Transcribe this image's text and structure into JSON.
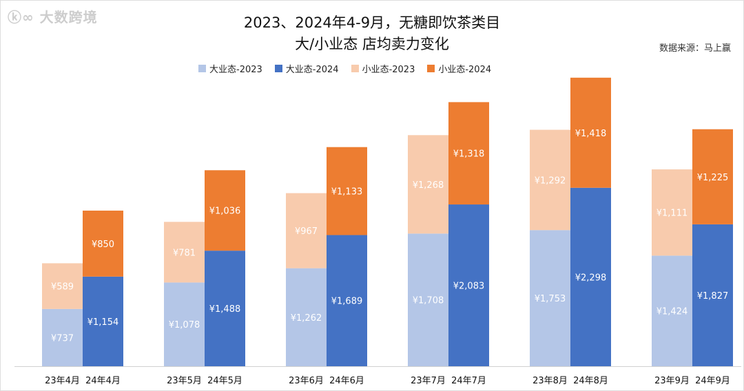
{
  "chart_data": {
    "type": "bar",
    "stacked": true,
    "title": "2023、2024年4-9月，无糖即饮茶类目",
    "subtitle": "大/小业态 店均卖力变化",
    "source": "数据来源：马上赢",
    "categories": [
      "23年4月",
      "24年4月",
      "23年5月",
      "24年5月",
      "23年6月",
      "24年6月",
      "23年7月",
      "24年7月",
      "23年8月",
      "24年8月",
      "23年9月",
      "24年9月"
    ],
    "series": [
      {
        "name": "大业态-2023",
        "color": "#b4c6e7",
        "month_values": [
          737,
          1078,
          1262,
          1708,
          1753,
          1424
        ]
      },
      {
        "name": "大业态-2024",
        "color": "#4472c4",
        "month_values": [
          1154,
          1488,
          1689,
          2083,
          2298,
          1827
        ]
      },
      {
        "name": "小业态-2023",
        "color": "#f8cbad",
        "month_values": [
          589,
          781,
          967,
          1268,
          1292,
          1111
        ]
      },
      {
        "name": "小业态-2024",
        "color": "#ed7d31",
        "month_values": [
          850,
          1036,
          1133,
          1318,
          1418,
          1225
        ]
      }
    ],
    "label_prefix": "¥",
    "legend_position": "top",
    "grid": false
  },
  "watermark": "大数跨境"
}
